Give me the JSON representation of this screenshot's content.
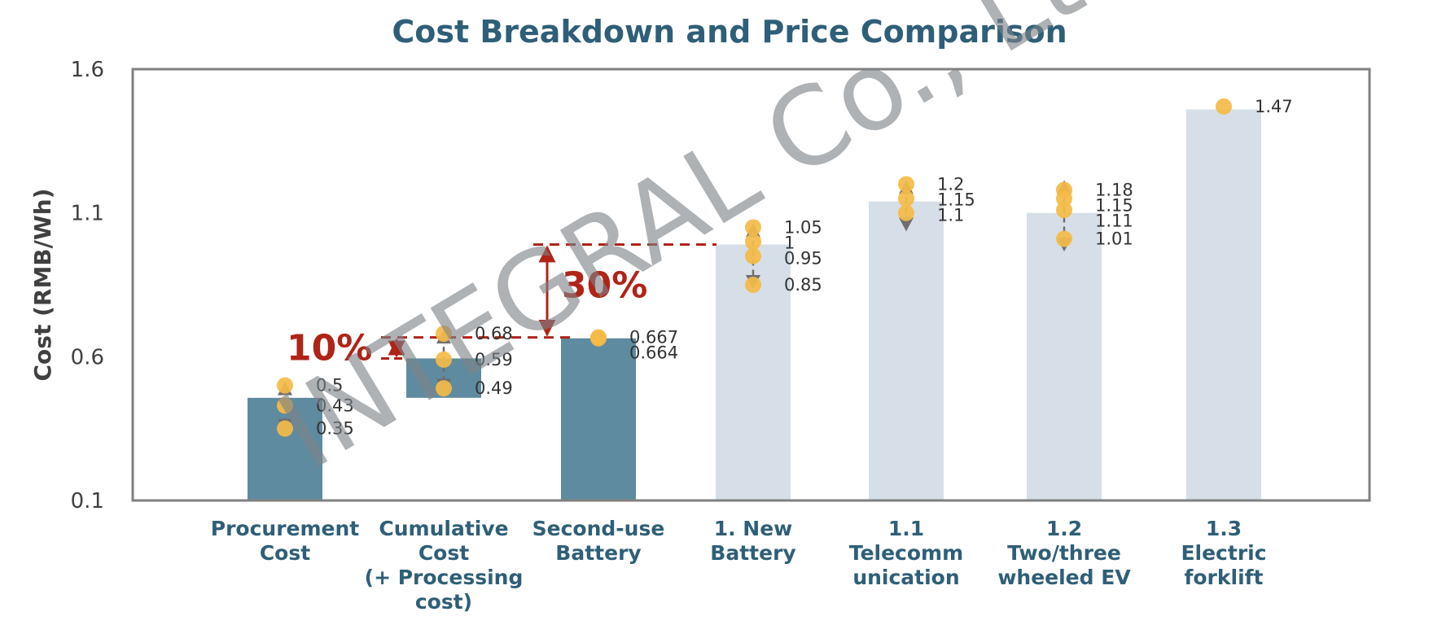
{
  "chart_data": {
    "type": "bar",
    "title": "Cost Breakdown and Price Comparison",
    "ylabel": "Cost (RMB/Wh)",
    "xlabel": "",
    "ylim": [
      0.1,
      1.6
    ],
    "yticks": [
      "0.1",
      "0.6",
      "1.1",
      "1.6"
    ],
    "grid": false,
    "colors": {
      "dark": "#5f8ba0",
      "light": "#d6dfe7",
      "point": "#f4bb47",
      "arrow": "#6f6f6f",
      "annotation": "#b02418",
      "axis": "#808080"
    },
    "categories": [
      {
        "lines": [
          "Procurement",
          "Cost"
        ],
        "bar": [
          0.1,
          0.457
        ],
        "style": "dark",
        "points": [
          {
            "value": 0.5,
            "label": "0.5"
          },
          {
            "value": 0.43,
            "label": "0.43"
          },
          {
            "value": 0.35,
            "label": "0.35"
          }
        ],
        "range": [
          0.35,
          0.5
        ]
      },
      {
        "lines": [
          "Cumulative",
          "Cost",
          "(+ Processing",
          "cost)"
        ],
        "bar": [
          0.457,
          0.594
        ],
        "style": "dark",
        "points": [
          {
            "value": 0.68,
            "label": "0.68"
          },
          {
            "value": 0.59,
            "label": "0.59"
          },
          {
            "value": 0.49,
            "label": "0.49"
          }
        ],
        "range": [
          0.49,
          0.68
        ]
      },
      {
        "lines": [
          "Second-use",
          "Battery"
        ],
        "bar": [
          0.1,
          0.664
        ],
        "style": "dark",
        "points": [
          {
            "value": 0.667,
            "label": "0.667"
          },
          {
            "value": 0.664,
            "label": "0.664"
          }
        ],
        "range": null
      },
      {
        "lines": [
          "1. New",
          "Battery"
        ],
        "bar": [
          0.1,
          0.99
        ],
        "style": "light",
        "points": [
          {
            "value": 1.05,
            "label": "1.05"
          },
          {
            "value": 1.0,
            "label": "1"
          },
          {
            "value": 0.95,
            "label": "0.95"
          },
          {
            "value": 0.85,
            "label": "0.85"
          }
        ],
        "range": [
          0.85,
          1.05
        ]
      },
      {
        "lines": [
          "1.1",
          "Telecomm",
          "unication"
        ],
        "bar": [
          0.1,
          1.14
        ],
        "style": "light",
        "points": [
          {
            "value": 1.2,
            "label": "1.2"
          },
          {
            "value": 1.15,
            "label": "1.15"
          },
          {
            "value": 1.1,
            "label": "1.1"
          }
        ],
        "range": [
          1.05,
          1.2
        ]
      },
      {
        "lines": [
          "1.2",
          "Two/three",
          "wheeled EV"
        ],
        "bar": [
          0.1,
          1.1
        ],
        "style": "light",
        "points": [
          {
            "value": 1.18,
            "label": "1.18"
          },
          {
            "value": 1.15,
            "label": "1.15"
          },
          {
            "value": 1.11,
            "label": "1.11"
          },
          {
            "value": 1.01,
            "label": "1.01"
          }
        ],
        "range": [
          0.98,
          1.2
        ]
      },
      {
        "lines": [
          "1.3",
          "Electric",
          "forklift"
        ],
        "bar": [
          0.1,
          1.46
        ],
        "style": "light",
        "points": [
          {
            "value": 1.47,
            "label": "1.47"
          }
        ],
        "range": null
      }
    ],
    "annotations": [
      {
        "label": "10%",
        "from": 0.594,
        "to": 0.667
      },
      {
        "label": "30%",
        "from": 0.667,
        "to": 0.99
      }
    ]
  },
  "watermark": "INTEGRAL Co., Ltd"
}
